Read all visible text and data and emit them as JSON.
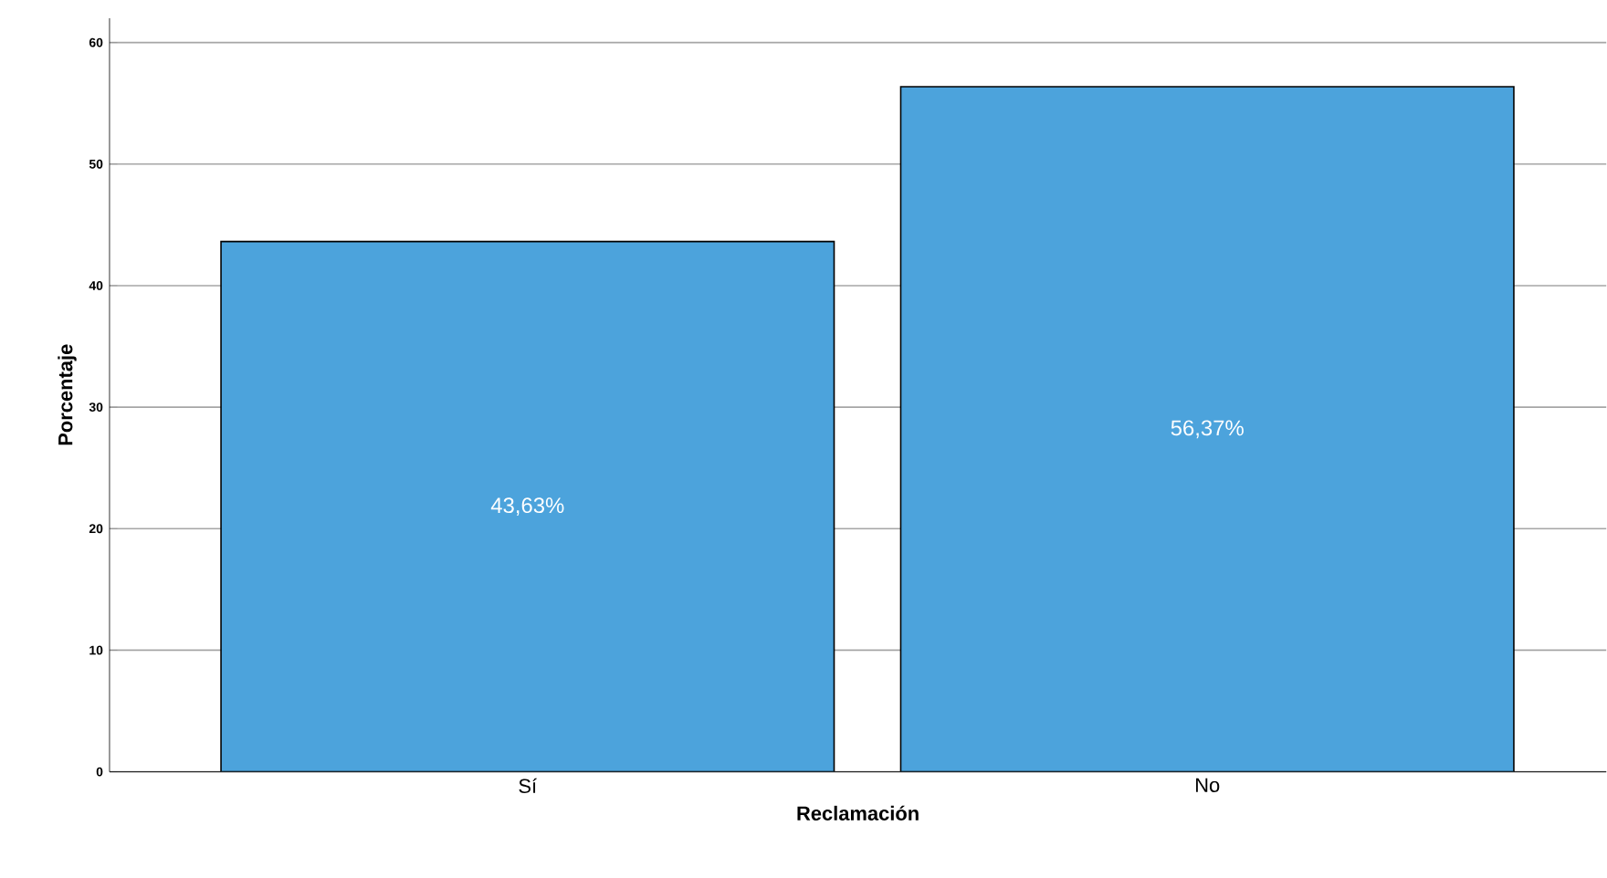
{
  "chart_data": {
    "type": "bar",
    "xlabel": "Reclamación",
    "ylabel": "Porcentaje",
    "categories": [
      "Sí",
      "No"
    ],
    "values": [
      43.63,
      56.37
    ],
    "value_labels": [
      "43,63%",
      "56,37%"
    ],
    "color": "#4ca3dc",
    "ylim": [
      0,
      62
    ],
    "yticks": [
      0,
      10,
      20,
      30,
      40,
      50,
      60
    ],
    "grid": "y"
  }
}
